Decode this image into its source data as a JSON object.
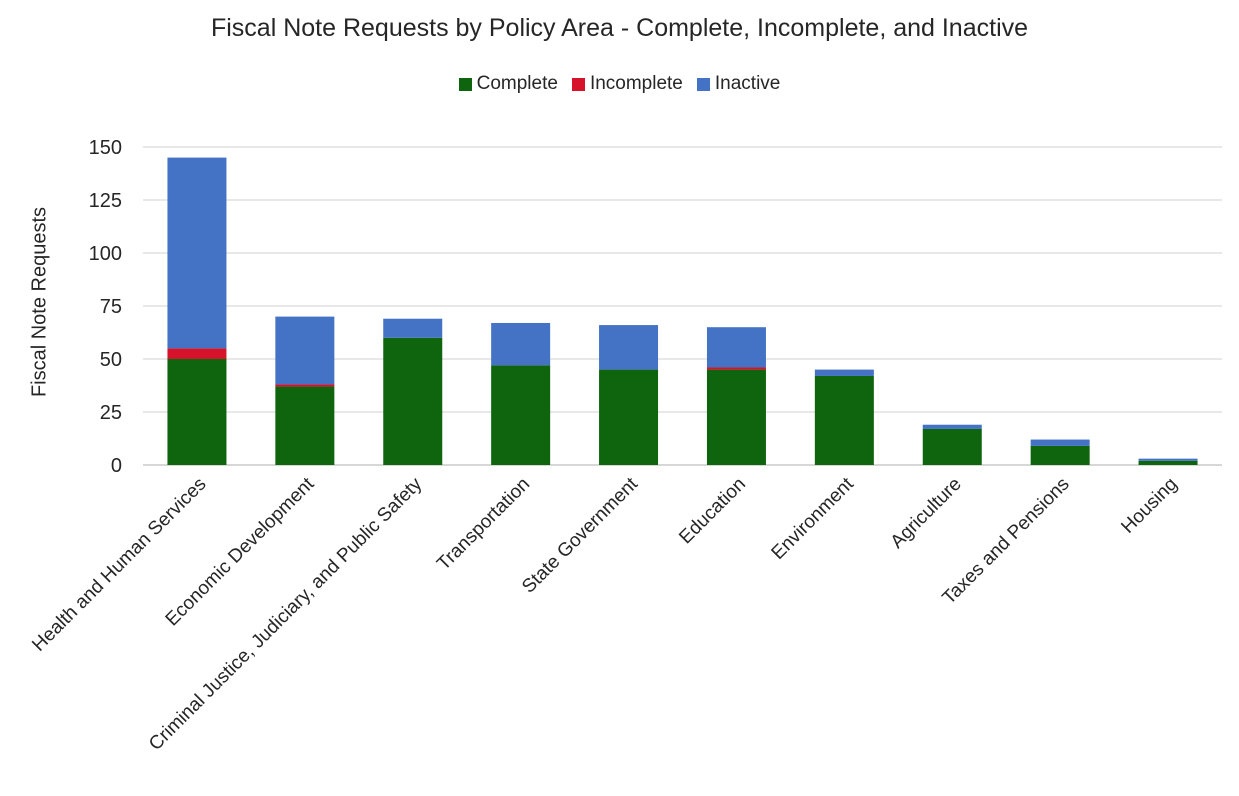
{
  "chart_data": {
    "type": "bar",
    "stacked": true,
    "title": "Fiscal Note Requests by Policy Area - Complete, Incomplete, and Inactive",
    "xlabel": "",
    "ylabel": "Fiscal Note Requests",
    "ylim": [
      0,
      150
    ],
    "yticks": [
      0,
      25,
      50,
      75,
      100,
      125,
      150
    ],
    "grid": true,
    "legend_position": "top",
    "categories": [
      "Health and Human Services",
      "Economic Development",
      "Criminal Justice, Judiciary, and Public Safety",
      "Transportation",
      "State Government",
      "Education",
      "Environment",
      "Agriculture",
      "Taxes and Pensions",
      "Housing"
    ],
    "series": [
      {
        "name": "Complete",
        "color": "#0e650e",
        "values": [
          50,
          37,
          60,
          47,
          45,
          45,
          42,
          17,
          9,
          2
        ]
      },
      {
        "name": "Incomplete",
        "color": "#d7132b",
        "values": [
          5,
          1,
          0,
          0,
          0,
          1,
          0,
          0,
          0,
          0
        ]
      },
      {
        "name": "Inactive",
        "color": "#4472c4",
        "values": [
          90,
          32,
          9,
          20,
          21,
          19,
          3,
          2,
          3,
          1
        ]
      }
    ]
  }
}
